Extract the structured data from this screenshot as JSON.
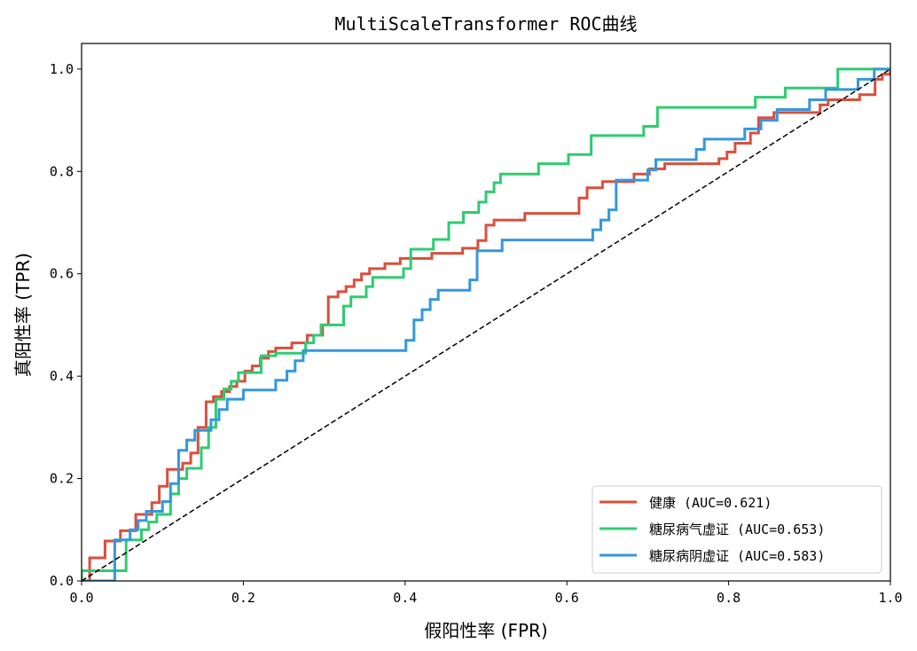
{
  "chart_data": {
    "type": "line",
    "title": "MultiScaleTransformer ROC曲线",
    "xlabel": "假阳性率 (FPR)",
    "ylabel": "真阳性率 (TPR)",
    "xlim": [
      0.0,
      1.0
    ],
    "ylim": [
      0.0,
      1.05
    ],
    "xticks": [
      "0.0",
      "0.2",
      "0.4",
      "0.6",
      "0.8",
      "1.0"
    ],
    "yticks": [
      "0.0",
      "0.2",
      "0.4",
      "0.6",
      "0.8",
      "1.0"
    ],
    "grid": false,
    "legend_position": "lower-right",
    "diagonal": {
      "color": "#000000",
      "style": "dashed",
      "points": [
        [
          0,
          0
        ],
        [
          1,
          1
        ]
      ]
    },
    "series": [
      {
        "name": "健康 (AUC=0.621)",
        "color": "#d94f3d",
        "points": [
          [
            0,
            0
          ],
          [
            0.01,
            0
          ],
          [
            0.01,
            0.045
          ],
          [
            0.029,
            0.045
          ],
          [
            0.029,
            0.078
          ],
          [
            0.048,
            0.078
          ],
          [
            0.048,
            0.098
          ],
          [
            0.067,
            0.098
          ],
          [
            0.067,
            0.13
          ],
          [
            0.087,
            0.13
          ],
          [
            0.087,
            0.153
          ],
          [
            0.096,
            0.153
          ],
          [
            0.096,
            0.185
          ],
          [
            0.106,
            0.185
          ],
          [
            0.106,
            0.218
          ],
          [
            0.125,
            0.218
          ],
          [
            0.125,
            0.23
          ],
          [
            0.135,
            0.23
          ],
          [
            0.135,
            0.25
          ],
          [
            0.144,
            0.25
          ],
          [
            0.144,
            0.3
          ],
          [
            0.154,
            0.3
          ],
          [
            0.154,
            0.35
          ],
          [
            0.163,
            0.35
          ],
          [
            0.163,
            0.36
          ],
          [
            0.173,
            0.36
          ],
          [
            0.173,
            0.37
          ],
          [
            0.183,
            0.37
          ],
          [
            0.183,
            0.38
          ],
          [
            0.192,
            0.38
          ],
          [
            0.192,
            0.39
          ],
          [
            0.202,
            0.39
          ],
          [
            0.202,
            0.41
          ],
          [
            0.211,
            0.41
          ],
          [
            0.211,
            0.42
          ],
          [
            0.221,
            0.42
          ],
          [
            0.221,
            0.435
          ],
          [
            0.231,
            0.435
          ],
          [
            0.231,
            0.448
          ],
          [
            0.24,
            0.448
          ],
          [
            0.24,
            0.455
          ],
          [
            0.26,
            0.455
          ],
          [
            0.26,
            0.465
          ],
          [
            0.279,
            0.465
          ],
          [
            0.279,
            0.48
          ],
          [
            0.298,
            0.48
          ],
          [
            0.298,
            0.5
          ],
          [
            0.305,
            0.5
          ],
          [
            0.305,
            0.555
          ],
          [
            0.317,
            0.555
          ],
          [
            0.317,
            0.565
          ],
          [
            0.327,
            0.565
          ],
          [
            0.327,
            0.575
          ],
          [
            0.337,
            0.575
          ],
          [
            0.337,
            0.588
          ],
          [
            0.346,
            0.588
          ],
          [
            0.346,
            0.6
          ],
          [
            0.356,
            0.6
          ],
          [
            0.356,
            0.61
          ],
          [
            0.375,
            0.61
          ],
          [
            0.375,
            0.62
          ],
          [
            0.394,
            0.62
          ],
          [
            0.394,
            0.63
          ],
          [
            0.433,
            0.63
          ],
          [
            0.433,
            0.64
          ],
          [
            0.471,
            0.64
          ],
          [
            0.471,
            0.65
          ],
          [
            0.49,
            0.65
          ],
          [
            0.49,
            0.665
          ],
          [
            0.5,
            0.665
          ],
          [
            0.5,
            0.695
          ],
          [
            0.51,
            0.695
          ],
          [
            0.51,
            0.705
          ],
          [
            0.548,
            0.705
          ],
          [
            0.548,
            0.718
          ],
          [
            0.615,
            0.718
          ],
          [
            0.615,
            0.748
          ],
          [
            0.625,
            0.748
          ],
          [
            0.625,
            0.768
          ],
          [
            0.644,
            0.768
          ],
          [
            0.644,
            0.78
          ],
          [
            0.683,
            0.78
          ],
          [
            0.683,
            0.795
          ],
          [
            0.702,
            0.795
          ],
          [
            0.702,
            0.805
          ],
          [
            0.721,
            0.805
          ],
          [
            0.721,
            0.815
          ],
          [
            0.788,
            0.815
          ],
          [
            0.788,
            0.825
          ],
          [
            0.798,
            0.825
          ],
          [
            0.798,
            0.838
          ],
          [
            0.808,
            0.838
          ],
          [
            0.808,
            0.855
          ],
          [
            0.827,
            0.855
          ],
          [
            0.827,
            0.875
          ],
          [
            0.837,
            0.875
          ],
          [
            0.837,
            0.905
          ],
          [
            0.856,
            0.905
          ],
          [
            0.856,
            0.915
          ],
          [
            0.913,
            0.915
          ],
          [
            0.913,
            0.93
          ],
          [
            0.923,
            0.93
          ],
          [
            0.923,
            0.94
          ],
          [
            0.962,
            0.94
          ],
          [
            0.962,
            0.95
          ],
          [
            0.981,
            0.95
          ],
          [
            0.981,
            0.98
          ],
          [
            0.99,
            0.98
          ],
          [
            0.99,
            0.99
          ],
          [
            1,
            0.99
          ],
          [
            1,
            1
          ]
        ]
      },
      {
        "name": "糖尿病气虚证 (AUC=0.653)",
        "color": "#2ecc71",
        "points": [
          [
            0,
            0
          ],
          [
            0,
            0.02
          ],
          [
            0.055,
            0.02
          ],
          [
            0.055,
            0.08
          ],
          [
            0.074,
            0.08
          ],
          [
            0.074,
            0.1
          ],
          [
            0.083,
            0.1
          ],
          [
            0.083,
            0.115
          ],
          [
            0.093,
            0.115
          ],
          [
            0.093,
            0.13
          ],
          [
            0.11,
            0.13
          ],
          [
            0.11,
            0.17
          ],
          [
            0.12,
            0.17
          ],
          [
            0.12,
            0.2
          ],
          [
            0.13,
            0.2
          ],
          [
            0.13,
            0.22
          ],
          [
            0.148,
            0.22
          ],
          [
            0.148,
            0.26
          ],
          [
            0.157,
            0.26
          ],
          [
            0.157,
            0.3
          ],
          [
            0.166,
            0.3
          ],
          [
            0.166,
            0.355
          ],
          [
            0.176,
            0.355
          ],
          [
            0.176,
            0.375
          ],
          [
            0.185,
            0.375
          ],
          [
            0.185,
            0.39
          ],
          [
            0.194,
            0.39
          ],
          [
            0.194,
            0.407
          ],
          [
            0.222,
            0.407
          ],
          [
            0.222,
            0.44
          ],
          [
            0.24,
            0.44
          ],
          [
            0.24,
            0.445
          ],
          [
            0.277,
            0.445
          ],
          [
            0.277,
            0.465
          ],
          [
            0.287,
            0.465
          ],
          [
            0.287,
            0.48
          ],
          [
            0.296,
            0.48
          ],
          [
            0.296,
            0.5
          ],
          [
            0.324,
            0.5
          ],
          [
            0.324,
            0.537
          ],
          [
            0.333,
            0.537
          ],
          [
            0.333,
            0.555
          ],
          [
            0.352,
            0.555
          ],
          [
            0.352,
            0.575
          ],
          [
            0.36,
            0.575
          ],
          [
            0.36,
            0.593
          ],
          [
            0.398,
            0.593
          ],
          [
            0.398,
            0.61
          ],
          [
            0.407,
            0.61
          ],
          [
            0.407,
            0.648
          ],
          [
            0.435,
            0.648
          ],
          [
            0.435,
            0.667
          ],
          [
            0.454,
            0.667
          ],
          [
            0.454,
            0.7
          ],
          [
            0.472,
            0.7
          ],
          [
            0.472,
            0.72
          ],
          [
            0.491,
            0.72
          ],
          [
            0.491,
            0.74
          ],
          [
            0.5,
            0.74
          ],
          [
            0.5,
            0.76
          ],
          [
            0.51,
            0.76
          ],
          [
            0.51,
            0.778
          ],
          [
            0.518,
            0.778
          ],
          [
            0.518,
            0.795
          ],
          [
            0.565,
            0.795
          ],
          [
            0.565,
            0.815
          ],
          [
            0.602,
            0.815
          ],
          [
            0.602,
            0.833
          ],
          [
            0.63,
            0.833
          ],
          [
            0.63,
            0.87
          ],
          [
            0.695,
            0.87
          ],
          [
            0.695,
            0.888
          ],
          [
            0.712,
            0.888
          ],
          [
            0.712,
            0.925
          ],
          [
            0.833,
            0.925
          ],
          [
            0.833,
            0.945
          ],
          [
            0.87,
            0.945
          ],
          [
            0.87,
            0.963
          ],
          [
            0.935,
            0.963
          ],
          [
            0.935,
            1.0
          ],
          [
            1,
            1.0
          ]
        ]
      },
      {
        "name": "糖尿病阴虚证 (AUC=0.583)",
        "color": "#3498db",
        "points": [
          [
            0,
            0
          ],
          [
            0.041,
            0
          ],
          [
            0.041,
            0.08
          ],
          [
            0.06,
            0.08
          ],
          [
            0.06,
            0.1
          ],
          [
            0.07,
            0.1
          ],
          [
            0.07,
            0.118
          ],
          [
            0.08,
            0.118
          ],
          [
            0.08,
            0.136
          ],
          [
            0.1,
            0.136
          ],
          [
            0.1,
            0.155
          ],
          [
            0.11,
            0.155
          ],
          [
            0.11,
            0.19
          ],
          [
            0.12,
            0.19
          ],
          [
            0.12,
            0.255
          ],
          [
            0.13,
            0.255
          ],
          [
            0.13,
            0.275
          ],
          [
            0.14,
            0.275
          ],
          [
            0.14,
            0.294
          ],
          [
            0.16,
            0.294
          ],
          [
            0.16,
            0.315
          ],
          [
            0.17,
            0.315
          ],
          [
            0.17,
            0.335
          ],
          [
            0.18,
            0.335
          ],
          [
            0.18,
            0.355
          ],
          [
            0.2,
            0.355
          ],
          [
            0.2,
            0.373
          ],
          [
            0.24,
            0.373
          ],
          [
            0.24,
            0.392
          ],
          [
            0.254,
            0.392
          ],
          [
            0.254,
            0.41
          ],
          [
            0.264,
            0.41
          ],
          [
            0.264,
            0.43
          ],
          [
            0.274,
            0.43
          ],
          [
            0.274,
            0.45
          ],
          [
            0.401,
            0.45
          ],
          [
            0.401,
            0.47
          ],
          [
            0.411,
            0.47
          ],
          [
            0.411,
            0.51
          ],
          [
            0.421,
            0.51
          ],
          [
            0.421,
            0.53
          ],
          [
            0.431,
            0.53
          ],
          [
            0.431,
            0.55
          ],
          [
            0.441,
            0.55
          ],
          [
            0.441,
            0.568
          ],
          [
            0.48,
            0.568
          ],
          [
            0.48,
            0.588
          ],
          [
            0.489,
            0.588
          ],
          [
            0.489,
            0.645
          ],
          [
            0.52,
            0.645
          ],
          [
            0.52,
            0.666
          ],
          [
            0.632,
            0.666
          ],
          [
            0.632,
            0.686
          ],
          [
            0.642,
            0.686
          ],
          [
            0.642,
            0.705
          ],
          [
            0.652,
            0.705
          ],
          [
            0.652,
            0.725
          ],
          [
            0.661,
            0.725
          ],
          [
            0.661,
            0.783
          ],
          [
            0.7,
            0.783
          ],
          [
            0.7,
            0.803
          ],
          [
            0.71,
            0.803
          ],
          [
            0.71,
            0.823
          ],
          [
            0.76,
            0.823
          ],
          [
            0.76,
            0.843
          ],
          [
            0.77,
            0.843
          ],
          [
            0.77,
            0.863
          ],
          [
            0.82,
            0.863
          ],
          [
            0.82,
            0.883
          ],
          [
            0.84,
            0.883
          ],
          [
            0.84,
            0.9
          ],
          [
            0.86,
            0.9
          ],
          [
            0.86,
            0.921
          ],
          [
            0.9,
            0.921
          ],
          [
            0.9,
            0.94
          ],
          [
            0.92,
            0.94
          ],
          [
            0.92,
            0.96
          ],
          [
            0.96,
            0.96
          ],
          [
            0.96,
            0.98
          ],
          [
            0.98,
            0.98
          ],
          [
            0.98,
            1.0
          ],
          [
            1,
            1.0
          ]
        ]
      }
    ]
  }
}
